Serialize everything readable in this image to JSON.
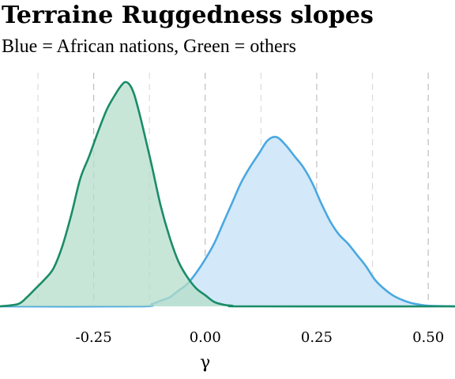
{
  "chart_data": {
    "type": "area",
    "title": "Terraine Ruggedness slopes",
    "subtitle": "Blue = African nations, Green = others",
    "xlabel": "γ",
    "ylabel": "",
    "xlim": [
      -0.46,
      0.56
    ],
    "ylim": [
      0,
      1
    ],
    "x_ticks": [
      -0.25,
      0.0,
      0.25,
      0.5
    ],
    "x_tick_labels": [
      "-0.25",
      "0.00",
      "0.25",
      "0.50"
    ],
    "grid_x_major": [
      -0.375,
      -0.25,
      -0.125,
      0.0,
      0.125,
      0.25,
      0.375,
      0.5
    ],
    "grid": "vertical dashed",
    "legend": "none",
    "series": [
      {
        "color_line": "#1a8c68",
        "color_fill": "#b6ddca",
        "x": [
          -0.46,
          -0.42,
          -0.4,
          -0.38,
          -0.36,
          -0.34,
          -0.32,
          -0.3,
          -0.28,
          -0.26,
          -0.24,
          -0.22,
          -0.2,
          -0.19,
          -0.18,
          -0.17,
          -0.16,
          -0.15,
          -0.14,
          -0.12,
          -0.1,
          -0.08,
          -0.06,
          -0.04,
          -0.02,
          0.0,
          0.02,
          0.04,
          0.06,
          0.1,
          0.56
        ],
        "values": [
          0.0,
          0.01,
          0.04,
          0.08,
          0.12,
          0.17,
          0.27,
          0.41,
          0.57,
          0.67,
          0.78,
          0.88,
          0.95,
          0.98,
          1.0,
          0.99,
          0.95,
          0.88,
          0.8,
          0.63,
          0.45,
          0.31,
          0.2,
          0.13,
          0.08,
          0.05,
          0.02,
          0.008,
          0.003,
          0.0,
          0.0
        ]
      },
      {
        "color_line": "#4aa8e0",
        "color_fill": "#d3e8f8",
        "x": [
          -0.46,
          -0.15,
          -0.12,
          -0.1,
          -0.08,
          -0.06,
          -0.04,
          -0.02,
          0.0,
          0.02,
          0.04,
          0.06,
          0.08,
          0.1,
          0.12,
          0.14,
          0.16,
          0.18,
          0.2,
          0.22,
          0.24,
          0.26,
          0.28,
          0.3,
          0.32,
          0.34,
          0.36,
          0.38,
          0.4,
          0.42,
          0.44,
          0.46,
          0.48,
          0.5,
          0.56
        ],
        "values": [
          0.0,
          0.0,
          0.01,
          0.025,
          0.04,
          0.07,
          0.1,
          0.15,
          0.21,
          0.28,
          0.37,
          0.46,
          0.55,
          0.62,
          0.68,
          0.74,
          0.755,
          0.72,
          0.67,
          0.62,
          0.55,
          0.46,
          0.38,
          0.32,
          0.28,
          0.23,
          0.18,
          0.12,
          0.08,
          0.05,
          0.03,
          0.016,
          0.008,
          0.003,
          0.0
        ]
      }
    ]
  }
}
